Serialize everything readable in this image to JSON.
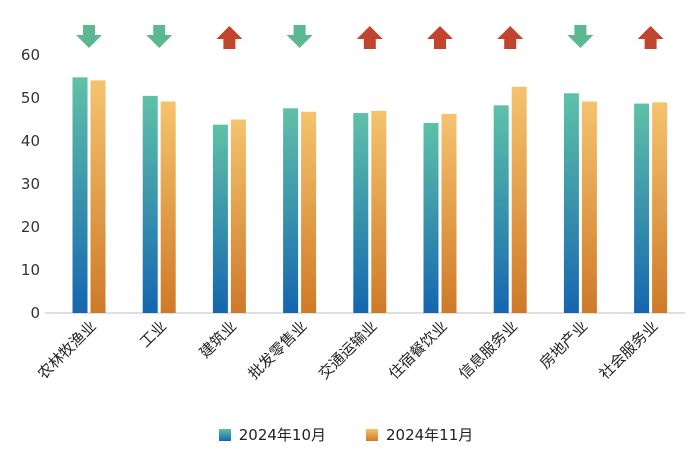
{
  "chart_data": {
    "type": "bar",
    "categories": [
      "农林牧渔业",
      "工业",
      "建筑业",
      "批发零售业",
      "交通运输业",
      "住宿餐饮业",
      "信息服务业",
      "房地产业",
      "社会服务业"
    ],
    "series": [
      {
        "name": "2024年10月",
        "values": [
          54.8,
          50.5,
          43.8,
          47.6,
          46.5,
          44.2,
          48.3,
          51.1,
          48.7
        ],
        "color_top": "#5fc1a8",
        "color_bottom": "#1566b0"
      },
      {
        "name": "2024年11月",
        "values": [
          54.1,
          49.2,
          45.0,
          46.8,
          47.0,
          46.3,
          52.6,
          49.2,
          49.0
        ],
        "color_top": "#f5c36e",
        "color_bottom": "#cf7a28"
      }
    ],
    "trend": [
      "down",
      "down",
      "up",
      "down",
      "up",
      "up",
      "up",
      "down",
      "up"
    ],
    "trend_colors": {
      "down": "#5cb890",
      "up": "#c0452c"
    },
    "yticks": [
      0,
      10,
      20,
      30,
      40,
      50,
      60
    ],
    "ylim": [
      0,
      60
    ],
    "legend_position": "bottom",
    "grid": false
  }
}
